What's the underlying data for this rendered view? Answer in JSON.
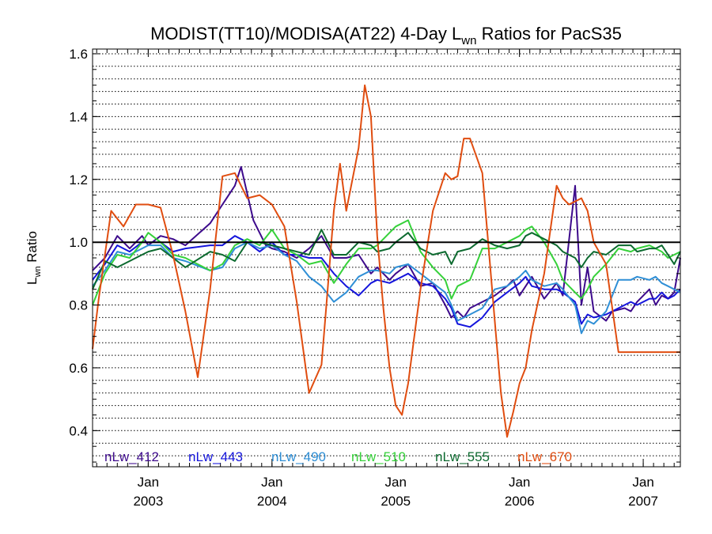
{
  "chart_data": {
    "type": "line",
    "title_main": "MODIST(TT10)/MODISA(AT22) 4-Day L",
    "title_sub": "wn",
    "title_tail": " Ratios for PacS35",
    "ylabel_main": "L",
    "ylabel_sub": "wn",
    "ylabel_tail": " Ratio",
    "xlim": [
      2002.55,
      2007.3
    ],
    "ylim": [
      0.285,
      1.615
    ],
    "yticks": [
      0.4,
      0.6,
      0.8,
      1.0,
      1.2,
      1.4,
      1.6
    ],
    "ytick_labels": [
      "0.4",
      "0.6",
      "0.8",
      "1.0",
      "1.2",
      "1.4",
      "1.6"
    ],
    "xticks": [
      {
        "x": 2003.0,
        "month": "Jan",
        "year": "2003"
      },
      {
        "x": 2004.0,
        "month": "Jan",
        "year": "2004"
      },
      {
        "x": 2005.0,
        "month": "Jan",
        "year": "2005"
      },
      {
        "x": 2006.0,
        "month": "Jan",
        "year": "2006"
      },
      {
        "x": 2007.0,
        "month": "Jan",
        "year": "2007"
      }
    ],
    "reference_line": 1.0,
    "grid": "dotted horizontal",
    "legend_placement": "bottom inside",
    "series": [
      {
        "name": "nLw_412",
        "color": "#3d0a8c",
        "x": [
          2002.55,
          2002.65,
          2002.75,
          2002.85,
          2002.95,
          2003.0,
          2003.1,
          2003.2,
          2003.3,
          2003.5,
          2003.6,
          2003.7,
          2003.75,
          2003.85,
          2003.95,
          2004.0,
          2004.1,
          2004.2,
          2004.3,
          2004.4,
          2004.5,
          2004.6,
          2004.7,
          2004.8,
          2004.85,
          2004.95,
          2005.0,
          2005.1,
          2005.2,
          2005.3,
          2005.4,
          2005.45,
          2005.5,
          2005.55,
          2005.6,
          2005.7,
          2005.8,
          2005.9,
          2005.95,
          2006.0,
          2006.05,
          2006.1,
          2006.2,
          2006.3,
          2006.35,
          2006.45,
          2006.5,
          2006.55,
          2006.6,
          2006.7,
          2006.75,
          2006.85,
          2006.9,
          2006.95,
          2007.05,
          2007.1,
          2007.15,
          2007.2,
          2007.25,
          2007.3
        ],
        "y": [
          0.91,
          0.95,
          1.02,
          0.98,
          1.02,
          0.99,
          1.02,
          1.01,
          0.99,
          1.06,
          1.12,
          1.18,
          1.24,
          1.07,
          0.99,
          0.98,
          0.97,
          0.95,
          0.98,
          1.02,
          0.95,
          0.95,
          0.96,
          0.9,
          0.92,
          0.88,
          0.9,
          0.93,
          0.86,
          0.87,
          0.8,
          0.76,
          0.78,
          0.76,
          0.79,
          0.81,
          0.83,
          0.86,
          0.88,
          0.83,
          0.86,
          0.89,
          0.82,
          0.87,
          0.83,
          1.18,
          0.8,
          0.92,
          0.78,
          0.75,
          0.78,
          0.79,
          0.78,
          0.81,
          0.85,
          0.8,
          0.83,
          0.82,
          0.84,
          0.95
        ]
      },
      {
        "name": "nLw_443",
        "color": "#1515dc",
        "x": [
          2002.55,
          2002.65,
          2002.75,
          2002.85,
          2002.95,
          2003.0,
          2003.1,
          2003.2,
          2003.3,
          2003.5,
          2003.6,
          2003.7,
          2003.8,
          2003.9,
          2004.0,
          2004.1,
          2004.2,
          2004.3,
          2004.4,
          2004.5,
          2004.6,
          2004.7,
          2004.8,
          2004.85,
          2004.95,
          2005.0,
          2005.1,
          2005.2,
          2005.3,
          2005.4,
          2005.45,
          2005.5,
          2005.6,
          2005.7,
          2005.8,
          2005.9,
          2006.0,
          2006.05,
          2006.1,
          2006.2,
          2006.3,
          2006.35,
          2006.45,
          2006.5,
          2006.55,
          2006.6,
          2006.7,
          2006.8,
          2006.9,
          2006.95,
          2007.05,
          2007.1,
          2007.15,
          2007.2,
          2007.25,
          2007.3
        ],
        "y": [
          0.88,
          0.93,
          0.99,
          0.97,
          1.0,
          1.0,
          1.0,
          0.97,
          0.98,
          0.99,
          0.99,
          1.02,
          1.0,
          0.97,
          1.0,
          0.96,
          0.96,
          0.95,
          0.95,
          0.9,
          0.86,
          0.83,
          0.87,
          0.88,
          0.87,
          0.88,
          0.9,
          0.87,
          0.86,
          0.82,
          0.79,
          0.74,
          0.73,
          0.76,
          0.81,
          0.84,
          0.87,
          0.89,
          0.86,
          0.85,
          0.85,
          0.84,
          0.81,
          0.74,
          0.77,
          0.76,
          0.77,
          0.79,
          0.81,
          0.8,
          0.82,
          0.82,
          0.84,
          0.82,
          0.83,
          0.85
        ]
      },
      {
        "name": "nLw_490",
        "color": "#2f8fd6",
        "x": [
          2002.55,
          2002.65,
          2002.75,
          2002.85,
          2002.95,
          2003.0,
          2003.1,
          2003.2,
          2003.3,
          2003.5,
          2003.6,
          2003.7,
          2003.8,
          2003.9,
          2004.0,
          2004.1,
          2004.2,
          2004.3,
          2004.4,
          2004.5,
          2004.6,
          2004.7,
          2004.8,
          2004.85,
          2004.95,
          2005.0,
          2005.1,
          2005.2,
          2005.3,
          2005.4,
          2005.45,
          2005.5,
          2005.6,
          2005.7,
          2005.8,
          2005.9,
          2006.0,
          2006.05,
          2006.1,
          2006.2,
          2006.3,
          2006.35,
          2006.45,
          2006.5,
          2006.55,
          2006.6,
          2006.7,
          2006.8,
          2006.9,
          2006.95,
          2007.05,
          2007.1,
          2007.15,
          2007.2,
          2007.25,
          2007.3
        ],
        "y": [
          0.86,
          0.91,
          0.97,
          0.96,
          0.98,
          0.99,
          0.99,
          0.95,
          0.94,
          0.91,
          0.92,
          0.98,
          1.0,
          0.98,
          0.99,
          0.96,
          0.94,
          0.89,
          0.86,
          0.81,
          0.84,
          0.89,
          0.91,
          0.91,
          0.9,
          0.92,
          0.93,
          0.9,
          0.87,
          0.84,
          0.8,
          0.75,
          0.77,
          0.79,
          0.85,
          0.86,
          0.89,
          0.91,
          0.88,
          0.86,
          0.87,
          0.85,
          0.8,
          0.71,
          0.75,
          0.74,
          0.78,
          0.88,
          0.88,
          0.89,
          0.88,
          0.89,
          0.87,
          0.86,
          0.85,
          0.84
        ]
      },
      {
        "name": "nLw_510",
        "color": "#36d13a",
        "x": [
          2002.55,
          2002.65,
          2002.75,
          2002.85,
          2002.95,
          2003.0,
          2003.1,
          2003.2,
          2003.3,
          2003.5,
          2003.6,
          2003.7,
          2003.8,
          2003.9,
          2004.0,
          2004.1,
          2004.2,
          2004.3,
          2004.4,
          2004.5,
          2004.6,
          2004.7,
          2004.8,
          2004.85,
          2004.95,
          2005.0,
          2005.1,
          2005.2,
          2005.3,
          2005.4,
          2005.45,
          2005.5,
          2005.6,
          2005.7,
          2005.8,
          2005.9,
          2006.0,
          2006.05,
          2006.1,
          2006.2,
          2006.3,
          2006.35,
          2006.45,
          2006.5,
          2006.55,
          2006.6,
          2006.7,
          2006.8,
          2006.9,
          2006.95,
          2007.05,
          2007.1,
          2007.15,
          2007.2,
          2007.25,
          2007.3
        ],
        "y": [
          0.8,
          0.9,
          0.96,
          0.95,
          1.0,
          1.03,
          1.0,
          0.96,
          0.95,
          0.91,
          0.93,
          0.99,
          1.01,
          0.99,
          1.04,
          0.98,
          0.96,
          0.93,
          0.94,
          0.87,
          0.93,
          0.98,
          0.98,
          0.99,
          1.03,
          1.05,
          1.07,
          0.97,
          0.92,
          0.88,
          0.82,
          0.86,
          0.88,
          0.98,
          0.98,
          1.0,
          1.02,
          1.04,
          1.05,
          1.0,
          0.93,
          0.88,
          0.84,
          0.82,
          0.85,
          0.89,
          0.93,
          0.98,
          0.97,
          0.98,
          0.99,
          0.98,
          0.97,
          0.95,
          0.96,
          0.97
        ]
      },
      {
        "name": "nLw_555",
        "color": "#0c6a2f",
        "x": [
          2002.55,
          2002.65,
          2002.75,
          2002.85,
          2002.95,
          2003.0,
          2003.1,
          2003.2,
          2003.3,
          2003.5,
          2003.6,
          2003.7,
          2003.8,
          2003.9,
          2004.0,
          2004.1,
          2004.2,
          2004.3,
          2004.4,
          2004.5,
          2004.6,
          2004.7,
          2004.8,
          2004.85,
          2004.95,
          2005.0,
          2005.1,
          2005.2,
          2005.3,
          2005.4,
          2005.45,
          2005.5,
          2005.6,
          2005.7,
          2005.8,
          2005.9,
          2006.0,
          2006.05,
          2006.1,
          2006.2,
          2006.3,
          2006.35,
          2006.45,
          2006.5,
          2006.55,
          2006.6,
          2006.7,
          2006.8,
          2006.9,
          2006.95,
          2007.05,
          2007.1,
          2007.15,
          2007.2,
          2007.25,
          2007.3
        ],
        "y": [
          0.85,
          0.94,
          0.92,
          0.94,
          0.96,
          0.97,
          0.98,
          0.95,
          0.92,
          0.97,
          0.96,
          0.94,
          1.0,
          1.0,
          0.99,
          0.98,
          0.97,
          0.96,
          1.04,
          0.96,
          0.96,
          1.0,
          0.99,
          0.97,
          0.98,
          1.0,
          1.03,
          0.98,
          0.96,
          0.97,
          0.93,
          0.97,
          0.98,
          1.01,
          0.99,
          0.98,
          0.99,
          1.02,
          1.03,
          1.01,
          0.99,
          0.97,
          0.95,
          0.92,
          0.95,
          0.97,
          0.96,
          0.99,
          0.99,
          0.97,
          0.98,
          0.98,
          0.99,
          0.96,
          0.93,
          0.97
        ]
      },
      {
        "name": "nLw_670",
        "color": "#e04d10",
        "x": [
          2002.55,
          2002.6,
          2002.7,
          2002.8,
          2002.9,
          2003.0,
          2003.1,
          2003.2,
          2003.3,
          2003.4,
          2003.5,
          2003.6,
          2003.7,
          2003.8,
          2003.9,
          2004.0,
          2004.1,
          2004.2,
          2004.3,
          2004.4,
          2004.45,
          2004.5,
          2004.55,
          2004.6,
          2004.7,
          2004.75,
          2004.8,
          2004.85,
          2004.9,
          2004.95,
          2005.0,
          2005.05,
          2005.1,
          2005.2,
          2005.3,
          2005.4,
          2005.45,
          2005.5,
          2005.55,
          2005.6,
          2005.7,
          2005.8,
          2005.85,
          2005.9,
          2005.95,
          2006.0,
          2006.05,
          2006.1,
          2006.2,
          2006.3,
          2006.35,
          2006.4,
          2006.5,
          2006.55,
          2006.6,
          2006.7,
          2006.8,
          2006.9,
          2006.95,
          2007.0,
          2007.05,
          2007.1,
          2007.15,
          2007.2,
          2007.25,
          2007.3
        ],
        "y": [
          0.66,
          0.82,
          1.1,
          1.05,
          1.12,
          1.12,
          1.11,
          0.96,
          0.78,
          0.57,
          0.85,
          1.21,
          1.22,
          1.14,
          1.15,
          1.12,
          1.05,
          0.81,
          0.52,
          0.61,
          0.85,
          1.1,
          1.25,
          1.1,
          1.3,
          1.5,
          1.4,
          1.02,
          0.79,
          0.6,
          0.48,
          0.45,
          0.55,
          0.85,
          1.1,
          1.22,
          1.2,
          1.21,
          1.33,
          1.33,
          1.22,
          0.75,
          0.52,
          0.38,
          0.46,
          0.55,
          0.6,
          0.72,
          0.9,
          1.18,
          1.14,
          1.12,
          1.14,
          1.1,
          1.0,
          0.93,
          0.65,
          0.65,
          0.65,
          0.65,
          0.65,
          0.65,
          0.65,
          0.65,
          0.65,
          0.65
        ]
      }
    ]
  }
}
